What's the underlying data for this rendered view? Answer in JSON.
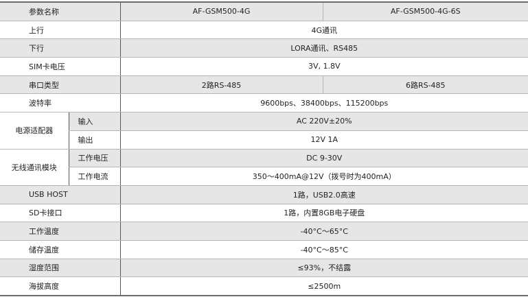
{
  "header": {
    "label": "参数名称",
    "model_a": "AF-GSM500-4G",
    "model_b": "AF-GSM500-4G-6S"
  },
  "rows": {
    "uplink": {
      "label": "上行",
      "value": "4G通讯"
    },
    "downlink": {
      "label": "下行",
      "value": "LORA通讯、RS485"
    },
    "sim_voltage": {
      "label": "SIM卡电压",
      "value": "3V, 1.8V"
    },
    "serial_type": {
      "label": "串口类型",
      "value_a": "2路RS-485",
      "value_b": "6路RS-485"
    },
    "baud_rate": {
      "label": "波特率",
      "value": "9600bps、38400bps、115200bps"
    },
    "power_adapter": {
      "label": "电源适配器",
      "input": {
        "label": "输入",
        "value": "AC 220V±20%"
      },
      "output": {
        "label": "输出",
        "value": "12V 1A"
      }
    },
    "wireless_module": {
      "label": "无线通讯模块",
      "voltage": {
        "label": "工作电压",
        "value": "DC 9-30V"
      },
      "current": {
        "label": "工作电流",
        "value": "350～400mA@12V（拨号时为400mA）"
      }
    },
    "usb_host": {
      "label": "USB HOST",
      "value": "1路，USB2.0高速"
    },
    "sd_card": {
      "label": "SD卡接口",
      "value": "1路，内置8GB电子硬盘"
    },
    "operating_temp": {
      "label": "工作温度",
      "value": "-40°C～65°C"
    },
    "storage_temp": {
      "label": "储存温度",
      "value": "-40°C～85°C"
    },
    "humidity": {
      "label": "湿度范围",
      "value": "≤93%，不结露"
    },
    "altitude": {
      "label": "海拔高度",
      "value": "≤2500m"
    }
  },
  "colors": {
    "shade": "#e6e6e6",
    "border": "#6a6a6a"
  }
}
